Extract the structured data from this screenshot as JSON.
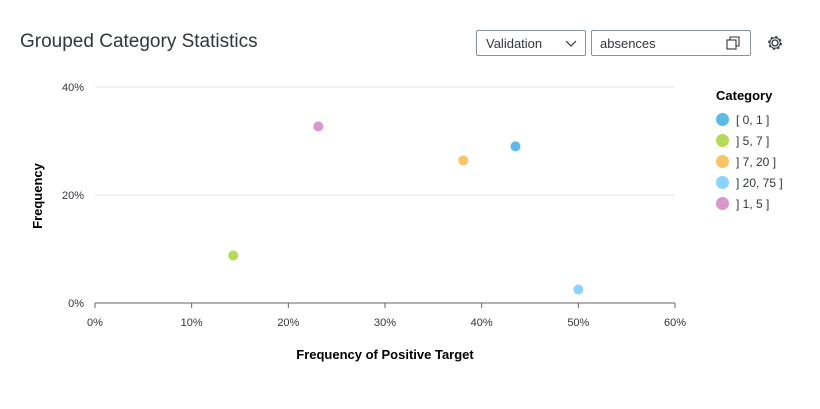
{
  "header": {
    "title": "Grouped Category Statistics",
    "dataset_select": "Validation",
    "variable_input": "absences"
  },
  "icons": {
    "dropdown": "chevron-down-icon",
    "value_help": "value-help-icon",
    "settings": "gear-icon"
  },
  "chart_data": {
    "type": "scatter",
    "xlabel": "Frequency of Positive Target",
    "ylabel": "Frequency",
    "xlim": [
      0,
      60
    ],
    "ylim": [
      0,
      40
    ],
    "x_ticks": [
      "0%",
      "10%",
      "20%",
      "30%",
      "40%",
      "50%",
      "60%"
    ],
    "y_ticks": [
      "0%",
      "20%",
      "40%"
    ],
    "x_tick_values": [
      0,
      10,
      20,
      30,
      40,
      50,
      60
    ],
    "y_tick_values": [
      0,
      20,
      40
    ],
    "grid": "horizontal",
    "legend_title": "Category",
    "legend_position": "right",
    "series": [
      {
        "name": "[ 0, 1 ]",
        "color": "#5cbae6",
        "x": 43.5,
        "y": 29.0
      },
      {
        "name": "] 5, 7 ]",
        "color": "#b6d957",
        "x": 14.3,
        "y": 8.8
      },
      {
        "name": "] 7, 20 ]",
        "color": "#fac364",
        "x": 38.1,
        "y": 26.4
      },
      {
        "name": "] 20, 75 ]",
        "color": "#8cd3ff",
        "x": 50.0,
        "y": 2.5
      },
      {
        "name": "] 1, 5 ]",
        "color": "#d998cb",
        "x": 23.1,
        "y": 32.7
      }
    ]
  }
}
